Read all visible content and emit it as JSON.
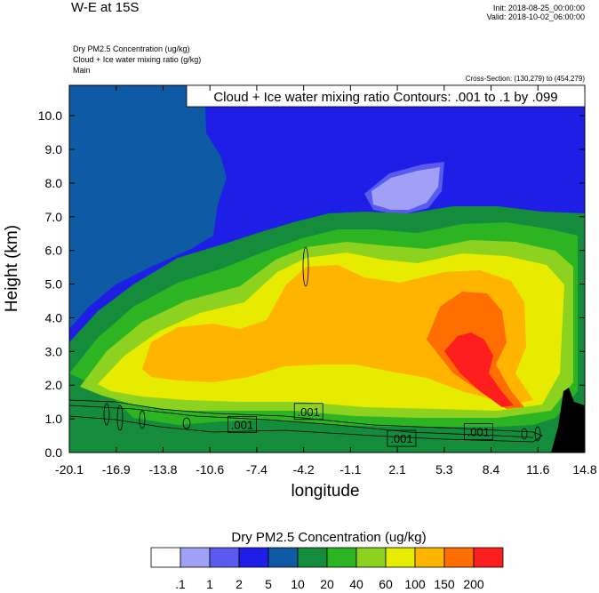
{
  "header": {
    "title": "W-E at 15S",
    "init": "Init: 2018-08-25_00:00:00",
    "valid": "Valid: 2018-10-02_06:00:00",
    "fields": [
      "Dry PM2.5 Concentration   (ug/kg)",
      "Cloud + Ice water mixing ratio   (g/kg)",
      "Main"
    ],
    "cross_section": "Cross-Section: (130,279) to (454,279)",
    "contour_note": "Cloud + Ice water mixing ratio Contours: .001 to .1 by .099"
  },
  "chart_data": {
    "type": "heatmap",
    "xlabel": "longitude",
    "ylabel": "Height (km)",
    "x_ticks": [
      "-20.1",
      "-16.9",
      "-13.8",
      "-10.6",
      "-7.4",
      "-4.2",
      "-1.1",
      "2.1",
      "5.3",
      "8.4",
      "11.6",
      "14.8"
    ],
    "y_ticks": [
      "0.0",
      "1.0",
      "2.0",
      "3.0",
      "4.0",
      "5.0",
      "6.0",
      "7.0",
      "8.0",
      "9.0",
      "10.0"
    ],
    "xlim": [
      -20.1,
      14.8
    ],
    "ylim": [
      0,
      10.9
    ],
    "contour_labels": [
      {
        "text": ".001",
        "x": -8.4,
        "y": 0.83
      },
      {
        "text": ".001",
        "x": -3.9,
        "y": 1.22
      },
      {
        "text": ".001",
        "x": 2.4,
        "y": 0.42
      },
      {
        "text": ".001",
        "x": 7.6,
        "y": 0.62
      }
    ],
    "colorbar": {
      "title": "Dry PM2.5 Concentration  (ug/kg)",
      "labels": [
        ".1",
        "1",
        "2",
        "5",
        "10",
        "20",
        "40",
        "60",
        "100",
        "150",
        "200"
      ],
      "colors": [
        "#ffffff",
        "#a0a0f6",
        "#5a5af0",
        "#1e1ee6",
        "#0f5aa5",
        "#148c3c",
        "#2db423",
        "#8cd21e",
        "#e6eb00",
        "#ffb400",
        "#ff6e00",
        "#ff1e1e"
      ]
    },
    "fill_colors": {
      "bg": "#1e1ee6",
      "c12": "#a0a0f6",
      "c25": "#5a5af0",
      "c510": "#0f5aa5",
      "c1020": "#148c3c",
      "c2040": "#2db423",
      "c4060": "#8cd21e",
      "c60100": "#e6eb00",
      "c100150": "#ffb400",
      "c150200": "#ff6e00",
      "c200": "#ff1e1e",
      "terrain": "#000000"
    }
  }
}
